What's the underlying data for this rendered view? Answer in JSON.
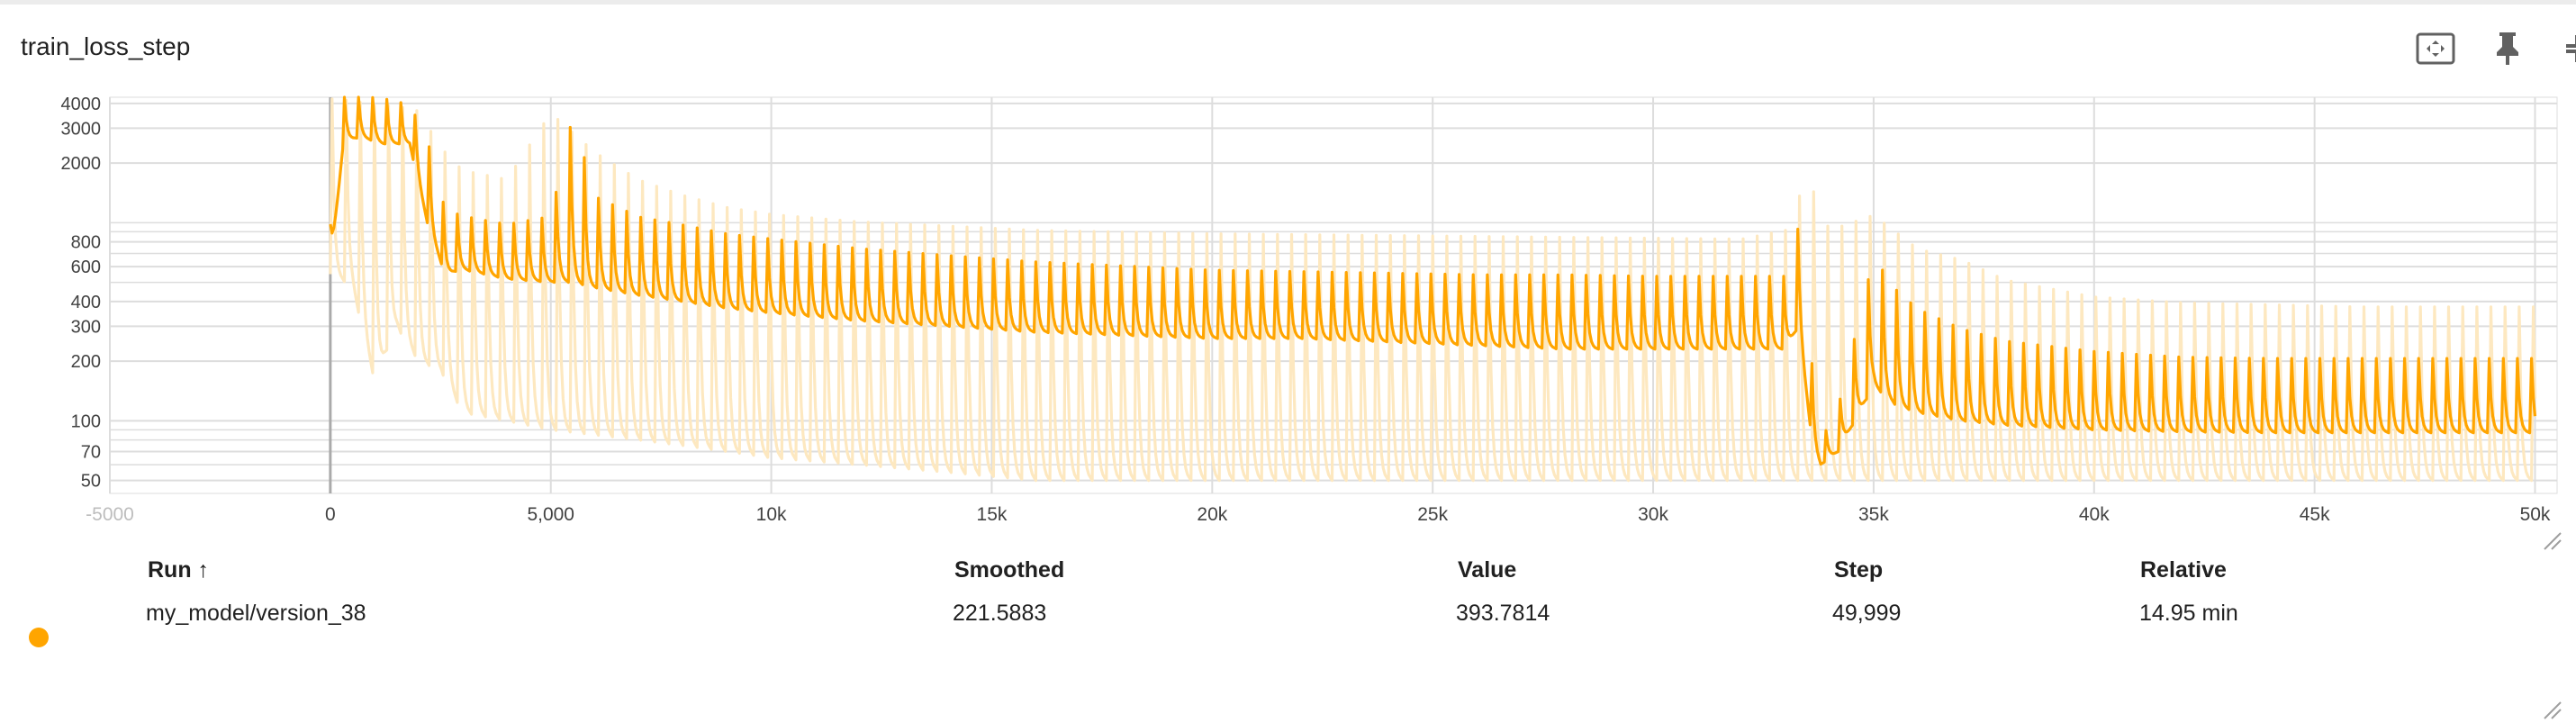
{
  "card": {
    "title": "train_loss_step"
  },
  "toolbar": {
    "icons": [
      "fit-domain-icon",
      "pin-icon",
      "collapse-icon",
      "more-vert-icon"
    ]
  },
  "colors": {
    "smoothed": "#ffa500",
    "raw": "#fde8c0",
    "grid": "#dddddd",
    "tick_text": "#424242"
  },
  "chart_data": {
    "type": "line",
    "title": "train_loss_step",
    "x_scale": "linear",
    "y_scale": "log",
    "xlim": [
      -5000,
      50500
    ],
    "ylim": [
      43,
      4300
    ],
    "x_ticks": [
      {
        "value": -5000,
        "label": "-5000"
      },
      {
        "value": 0,
        "label": "0"
      },
      {
        "value": 5000,
        "label": "5,000"
      },
      {
        "value": 10000,
        "label": "10k"
      },
      {
        "value": 15000,
        "label": "15k"
      },
      {
        "value": 20000,
        "label": "20k"
      },
      {
        "value": 25000,
        "label": "25k"
      },
      {
        "value": 30000,
        "label": "30k"
      },
      {
        "value": 35000,
        "label": "35k"
      },
      {
        "value": 40000,
        "label": "40k"
      },
      {
        "value": 45000,
        "label": "45k"
      },
      {
        "value": 50000,
        "label": "50k"
      }
    ],
    "y_ticks": [
      {
        "value": 50,
        "label": "50"
      },
      {
        "value": 70,
        "label": "70"
      },
      {
        "value": 100,
        "label": "100"
      },
      {
        "value": 200,
        "label": "200"
      },
      {
        "value": 300,
        "label": "300"
      },
      {
        "value": 400,
        "label": "400"
      },
      {
        "value": 600,
        "label": "600"
      },
      {
        "value": 800,
        "label": "800"
      },
      {
        "value": 2000,
        "label": "2000"
      },
      {
        "value": 3000,
        "label": "3000"
      },
      {
        "value": 4000,
        "label": "4000"
      }
    ],
    "y_minor_grid": [
      60,
      80,
      90,
      500,
      700,
      900,
      1000
    ],
    "grid": true,
    "series": [
      {
        "name": "my_model/version_38",
        "role": "raw",
        "x": [
          0,
          500,
          1000,
          1500,
          2000,
          2500,
          3000,
          4000,
          5000,
          6000,
          7000,
          8000,
          9000,
          10000,
          12000,
          14000,
          16000,
          18000,
          20000,
          22000,
          24000,
          26000,
          28000,
          30000,
          32000,
          33000,
          33500,
          34000,
          35000,
          36000,
          37000,
          38000,
          40000,
          42000,
          44000,
          46000,
          48000,
          50000
        ],
        "y": [
          3000,
          2600,
          2500,
          2400,
          2300,
          1600,
          1100,
          1000,
          950,
          850,
          780,
          700,
          650,
          620,
          560,
          520,
          480,
          450,
          420,
          400,
          380,
          360,
          350,
          340,
          330,
          320,
          200,
          120,
          200,
          200,
          170,
          150,
          135,
          125,
          120,
          117,
          115,
          114
        ],
        "upper": [
          4500,
          4400,
          4300,
          4200,
          4000,
          2600,
          2000,
          1800,
          4000,
          2500,
          1800,
          1500,
          1300,
          1200,
          1100,
          1050,
          1000,
          980,
          960,
          950,
          940,
          930,
          920,
          910,
          900,
          1000,
          1900,
          1000,
          1200,
          800,
          700,
          550,
          450,
          420,
          410,
          400,
          400,
          400
        ],
        "lower": [
          550,
          480,
          160,
          300,
          200,
          180,
          110,
          100,
          90,
          85,
          80,
          75,
          70,
          65,
          60,
          55,
          50,
          50,
          50,
          50,
          50,
          50,
          50,
          50,
          50,
          50,
          50,
          50,
          50,
          50,
          50,
          50,
          50,
          50,
          50,
          50,
          50,
          50
        ]
      },
      {
        "name": "my_model/version_38",
        "role": "smoothed",
        "x": [
          0,
          300,
          700,
          1200,
          1800,
          2200,
          2600,
          3000,
          4000,
          5000,
          5500,
          6000,
          7000,
          8000,
          9000,
          10000,
          12000,
          14000,
          16000,
          18000,
          20000,
          22000,
          24000,
          26000,
          28000,
          30000,
          32000,
          33000,
          33300,
          33600,
          33800,
          34200,
          35000,
          35500,
          36000,
          37000,
          38000,
          40000,
          42000,
          44000,
          46000,
          48000,
          50000
        ],
        "y": [
          600,
          3600,
          3700,
          3800,
          3700,
          2400,
          1100,
          900,
          800,
          800,
          1600,
          1000,
          900,
          820,
          750,
          700,
          620,
          560,
          520,
          490,
          460,
          440,
          420,
          400,
          385,
          375,
          365,
          360,
          800,
          140,
          70,
          80,
          300,
          230,
          190,
          160,
          145,
          125,
          112,
          105,
          102,
          100,
          98
        ],
        "upper": [
          1000,
          4400,
          4400,
          4300,
          4000,
          2700,
          1200,
          1100,
          1000,
          1100,
          3700,
          1400,
          1100,
          1000,
          900,
          850,
          760,
          700,
          650,
          620,
          590,
          580,
          570,
          560,
          560,
          550,
          550,
          550,
          1000,
          200,
          80,
          120,
          700,
          480,
          380,
          300,
          260,
          230,
          215,
          212,
          212,
          212,
          212
        ],
        "lower": [
          550,
          2600,
          2700,
          2500,
          2500,
          1000,
          550,
          580,
          520,
          500,
          500,
          470,
          430,
          400,
          370,
          350,
          320,
          300,
          280,
          270,
          260,
          260,
          250,
          240,
          230,
          230,
          230,
          230,
          300,
          80,
          60,
          70,
          150,
          120,
          110,
          100,
          95,
          90,
          88,
          87,
          87,
          87,
          87
        ]
      }
    ],
    "table": {
      "columns": [
        "Run ↑",
        "Smoothed",
        "Value",
        "Step",
        "Relative"
      ],
      "rows": [
        [
          "my_model/version_38",
          "221.5883",
          "393.7814",
          "49,999",
          "14.95 min"
        ]
      ]
    }
  }
}
